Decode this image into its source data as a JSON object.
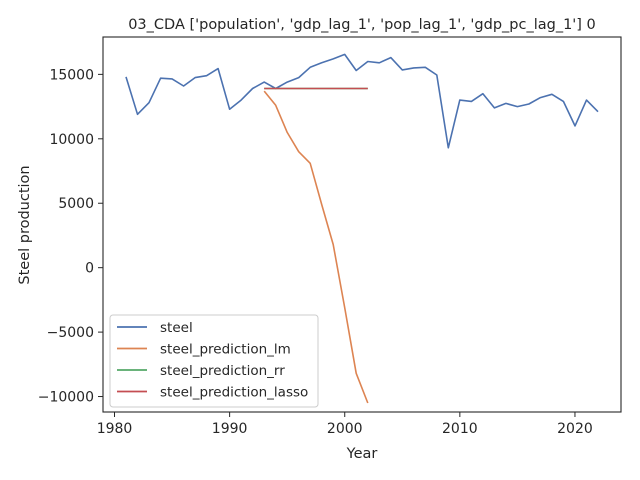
{
  "chart_data": {
    "type": "line",
    "title": "03_CDA ['population', 'gdp_lag_1', 'pop_lag_1', 'gdp_pc_lag_1'] 0",
    "xlabel": "Year",
    "ylabel": "Steel production",
    "xlim": [
      1979,
      2024
    ],
    "ylim": [
      -11200,
      17900
    ],
    "x_ticks": [
      1980,
      1990,
      2000,
      2010,
      2020
    ],
    "y_ticks": [
      -10000,
      -5000,
      0,
      5000,
      10000,
      15000
    ],
    "y_tick_labels": [
      "−10000",
      "−5000",
      "0",
      "5000",
      "10000",
      "15000"
    ],
    "legend_position": "lower-left",
    "grid": false,
    "series": [
      {
        "name": "steel",
        "color": "#4c72b0",
        "x": [
          1981,
          1982,
          1983,
          1984,
          1985,
          1986,
          1987,
          1988,
          1989,
          1990,
          1991,
          1992,
          1993,
          1994,
          1995,
          1996,
          1997,
          1998,
          1999,
          2000,
          2001,
          2002,
          2003,
          2004,
          2005,
          2006,
          2007,
          2008,
          2009,
          2010,
          2011,
          2012,
          2013,
          2014,
          2015,
          2016,
          2017,
          2018,
          2019,
          2020,
          2021,
          2022
        ],
        "y": [
          14800,
          11900,
          12800,
          14700,
          14650,
          14100,
          14750,
          14900,
          15450,
          12300,
          13000,
          13900,
          14400,
          13900,
          14400,
          14750,
          15550,
          15900,
          16200,
          16550,
          15300,
          16000,
          15900,
          16300,
          15350,
          15500,
          15550,
          14950,
          9300,
          13000,
          12900,
          13500,
          12400,
          12750,
          12500,
          12700,
          13200,
          13450,
          12900,
          11000,
          13000,
          12100
        ]
      },
      {
        "name": "steel_prediction_lm",
        "color": "#dd8452",
        "x": [
          1993,
          1994,
          1995,
          1996,
          1997,
          1998,
          1999,
          2000,
          2001,
          2002
        ],
        "y": [
          13700,
          12600,
          10500,
          9000,
          8100,
          4900,
          1800,
          -3100,
          -8200,
          -10500
        ]
      },
      {
        "name": "steel_prediction_rr",
        "color": "#55a868",
        "x": [
          1993,
          1994,
          1995,
          1996,
          1997,
          1998,
          1999,
          2000,
          2001,
          2002
        ],
        "y": [
          13900,
          13900,
          13900,
          13900,
          13900,
          13900,
          13900,
          13900,
          13900,
          13900
        ]
      },
      {
        "name": "steel_prediction_lasso",
        "color": "#c44e52",
        "x": [
          1993,
          1994,
          1995,
          1996,
          1997,
          1998,
          1999,
          2000,
          2001,
          2002
        ],
        "y": [
          13900,
          13900,
          13900,
          13900,
          13900,
          13900,
          13900,
          13900,
          13900,
          13900
        ]
      }
    ]
  }
}
